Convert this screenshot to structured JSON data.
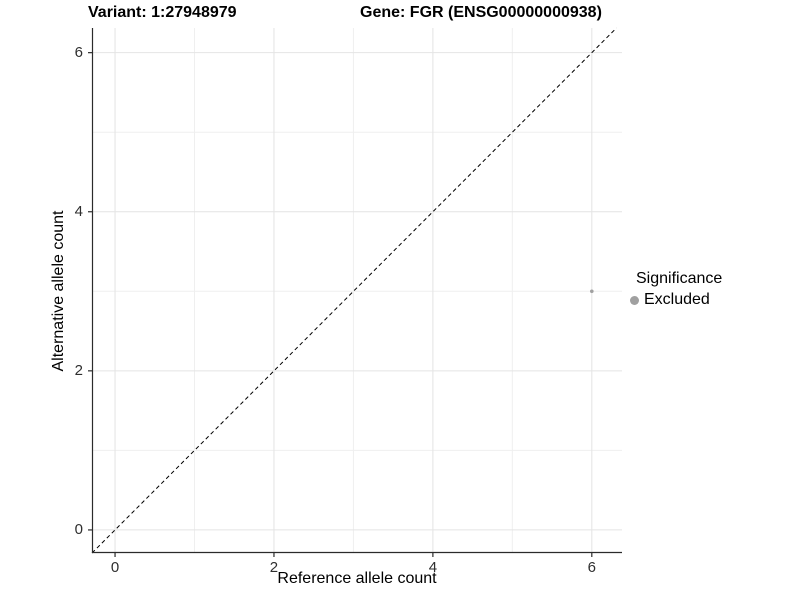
{
  "chart_data": {
    "type": "scatter",
    "title_left": "Variant: 1:27948979",
    "title_right": "Gene: FGR (ENSG00000000938)",
    "xlabel": "Reference allele count",
    "ylabel": "Alternative allele count",
    "xlim": [
      -0.29,
      6.38
    ],
    "ylim": [
      -0.29,
      6.31
    ],
    "x_major_ticks": [
      0,
      2,
      4,
      6
    ],
    "y_major_ticks": [
      0,
      2,
      4,
      6
    ],
    "x_minor_ticks": [
      1,
      3,
      5
    ],
    "y_minor_ticks": [
      1,
      3,
      5
    ],
    "grid": true,
    "grid_major_color": "#e4e4e4",
    "grid_minor_color": "#efefef",
    "axis_line_color": "#2b2b2b",
    "tick_label_color": "#2e2e2e",
    "identity_line": {
      "style": "dashed",
      "color": "#000000",
      "from": [
        -0.29,
        -0.29
      ],
      "to": [
        6.31,
        6.31
      ]
    },
    "series": [
      {
        "name": "Excluded",
        "color": "#a0a0a0",
        "point_radius": 1.8,
        "points": [
          {
            "x": 6,
            "y": 3
          }
        ]
      }
    ],
    "legend": {
      "title": "Significance",
      "position": "right",
      "key_diameter": 9,
      "entries": [
        {
          "label": "Excluded",
          "color": "#a0a0a0"
        }
      ]
    }
  }
}
